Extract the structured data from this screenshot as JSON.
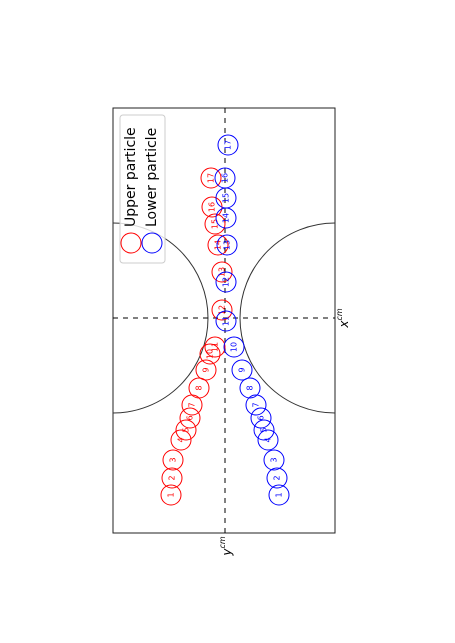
{
  "chart_data": {
    "type": "scatter",
    "xlabel": {
      "symbol": "x",
      "superscript": "cm"
    },
    "ylabel": {
      "symbol": "y",
      "superscript": "cm"
    },
    "xlim": [
      -10.75,
      10.5
    ],
    "ylim": [
      -5.5,
      5.6
    ],
    "legend": "upper right",
    "particle_radius": 0.5,
    "reference_lines": {
      "x": 0,
      "y": 0
    },
    "obstacles": [
      {
        "x": 0,
        "y": -5.5,
        "r": 4.75
      },
      {
        "x": 0,
        "y": 5.6,
        "r": 4.75
      }
    ],
    "series": [
      {
        "name": "Upper particle",
        "color": "#ff0000",
        "labels": [
          1,
          2,
          3,
          4,
          5,
          6,
          7,
          8,
          9,
          10,
          11,
          12,
          13,
          14,
          15,
          16,
          17
        ],
        "x": [
          -8.85,
          -8.0,
          -7.1,
          -6.1,
          -5.6,
          -5.0,
          -4.35,
          -3.5,
          -2.6,
          -1.8,
          -1.45,
          0.4,
          2.3,
          3.65,
          4.7,
          5.55,
          7.0
        ],
        "values": [
          2.7,
          2.65,
          2.6,
          2.2,
          1.95,
          1.75,
          1.65,
          1.3,
          0.95,
          0.75,
          0.5,
          0.15,
          0.15,
          0.35,
          0.5,
          0.65,
          0.7
        ]
      },
      {
        "name": "Lower particle",
        "color": "#0000ff",
        "labels": [
          1,
          2,
          3,
          4,
          5,
          6,
          7,
          8,
          9,
          10,
          11,
          12,
          13,
          14,
          15,
          16,
          17
        ],
        "x": [
          -8.85,
          -8.0,
          -7.1,
          -6.1,
          -5.6,
          -5.0,
          -4.35,
          -3.5,
          -2.6,
          -1.45,
          -0.15,
          1.8,
          3.65,
          5.0,
          6.0,
          7.0,
          8.65
        ],
        "values": [
          -2.7,
          -2.6,
          -2.45,
          -2.15,
          -1.95,
          -1.8,
          -1.55,
          -1.25,
          -0.85,
          -0.45,
          -0.05,
          -0.05,
          -0.1,
          -0.05,
          -0.05,
          0,
          -0.15
        ]
      }
    ]
  }
}
